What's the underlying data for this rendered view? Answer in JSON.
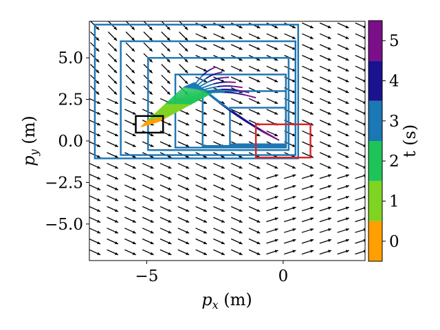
{
  "chart_data": {
    "type": "quiver",
    "xlabel_var": "p",
    "xlabel_sub": "x",
    "xlabel_unit": " (m)",
    "ylabel_var": "p",
    "ylabel_sub": "y",
    "ylabel_unit": " (m)",
    "xlim": [
      -7.1,
      3.0
    ],
    "ylim": [
      -7.2,
      7.2
    ],
    "x_ticks": [
      -5,
      0
    ],
    "x_tick_labels": [
      "−5",
      "0"
    ],
    "y_ticks": [
      5.0,
      2.5,
      0.0,
      -2.5,
      -5.0
    ],
    "y_tick_labels": [
      "5.0",
      "2.5",
      "0.0",
      "−2.5",
      "−5.0"
    ],
    "colorbar": {
      "label": "t (s)",
      "range": [
        -0.5,
        5.5
      ],
      "ticks": [
        0,
        1,
        2,
        3,
        4,
        5
      ],
      "tick_labels": [
        "0",
        "1",
        "2",
        "3",
        "4",
        "5"
      ],
      "bands": [
        {
          "from": -0.5,
          "to": 0.5,
          "color": "#ff9f00"
        },
        {
          "from": 0.5,
          "to": 1.5,
          "color": "#7fd321"
        },
        {
          "from": 1.5,
          "to": 2.5,
          "color": "#1ec45a"
        },
        {
          "from": 2.5,
          "to": 3.5,
          "color": "#1a78b4"
        },
        {
          "from": 3.5,
          "to": 4.5,
          "color": "#1a128f"
        },
        {
          "from": 4.5,
          "to": 5.5,
          "color": "#7b0f89"
        }
      ]
    },
    "start_box": {
      "x": [
        -5.4,
        -4.4
      ],
      "y": [
        0.5,
        1.5
      ],
      "color": "#000000"
    },
    "goal_box": {
      "x": [
        -1.0,
        1.0
      ],
      "y": [
        -1.0,
        1.0
      ],
      "color": "#d62728"
    },
    "reachable_boxes": [
      {
        "x": [
          -6.9,
          0.55
        ],
        "y": [
          -1.05,
          7.0
        ]
      },
      {
        "x": [
          -5.95,
          0.45
        ],
        "y": [
          -0.85,
          6.0
        ]
      },
      {
        "x": [
          -4.95,
          0.2
        ],
        "y": [
          -0.55,
          5.0
        ]
      },
      {
        "x": [
          -3.95,
          0.1
        ],
        "y": [
          -0.4,
          4.0
        ]
      },
      {
        "x": [
          -2.95,
          0.1
        ],
        "y": [
          -0.3,
          3.0
        ]
      },
      {
        "x": [
          -1.95,
          0.1
        ],
        "y": [
          -0.2,
          2.0
        ]
      }
    ],
    "trajectory_fan": {
      "start": [
        -4.9,
        1.0
      ],
      "junction": [
        -3.0,
        3.5
      ],
      "end_down": [
        -0.1,
        0.0
      ],
      "end_up_x": [
        -2.6,
        -1.0
      ],
      "end_up_y": [
        2.6,
        4.6
      ],
      "count": 14,
      "t_range": [
        0,
        5
      ]
    },
    "vector_field": {
      "x_start": -6.9,
      "x_step": 0.65,
      "y_start": -6.7,
      "y_step": 0.65,
      "color": "#000000"
    }
  }
}
